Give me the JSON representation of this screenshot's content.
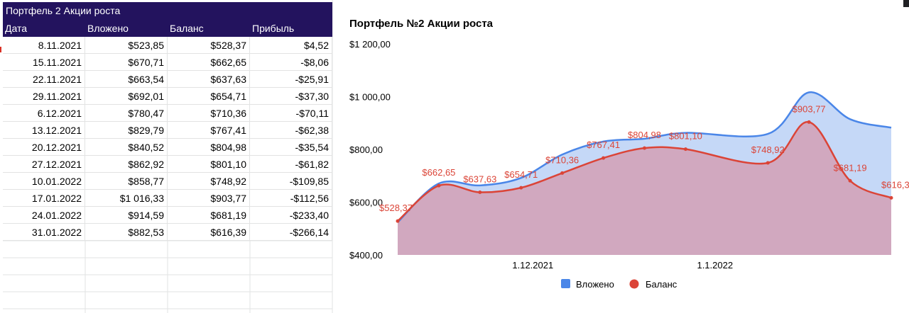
{
  "table": {
    "title": "Портфель 2 Акции роста",
    "headers": [
      "Дата",
      "Вложено",
      "Баланс",
      "Прибыль"
    ],
    "rows": [
      [
        "8.11.2021",
        "$523,85",
        "$528,37",
        "$4,52"
      ],
      [
        "15.11.2021",
        "$670,71",
        "$662,65",
        "-$8,06"
      ],
      [
        "22.11.2021",
        "$663,54",
        "$637,63",
        "-$25,91"
      ],
      [
        "29.11.2021",
        "$692,01",
        "$654,71",
        "-$37,30"
      ],
      [
        "6.12.2021",
        "$780,47",
        "$710,36",
        "-$70,11"
      ],
      [
        "13.12.2021",
        "$829,79",
        "$767,41",
        "-$62,38"
      ],
      [
        "20.12.2021",
        "$840,52",
        "$804,98",
        "-$35,54"
      ],
      [
        "27.12.2021",
        "$862,92",
        "$801,10",
        "-$61,82"
      ],
      [
        "10.01.2022",
        "$858,77",
        "$748,92",
        "-$109,85"
      ],
      [
        "17.01.2022",
        "$1 016,33",
        "$903,77",
        "-$112,56"
      ],
      [
        "24.01.2022",
        "$914,59",
        "$681,19",
        "-$233,40"
      ],
      [
        "31.01.2022",
        "$882,53",
        "$616,39",
        "-$266,14"
      ]
    ]
  },
  "chart_data": {
    "type": "area",
    "title": "Портфель №2 Акции роста",
    "x": [
      "8.11.2021",
      "15.11.2021",
      "22.11.2021",
      "29.11.2021",
      "6.12.2021",
      "13.12.2021",
      "20.12.2021",
      "27.12.2021",
      "10.01.2022",
      "17.01.2022",
      "24.01.2022",
      "31.01.2022"
    ],
    "series": [
      {
        "name": "Вложено",
        "color": "#4a86e8",
        "values": [
          523.85,
          670.71,
          663.54,
          692.01,
          780.47,
          829.79,
          840.52,
          862.92,
          858.77,
          1016.33,
          914.59,
          882.53
        ]
      },
      {
        "name": "Баланс",
        "color": "#db4437",
        "values": [
          528.37,
          662.65,
          637.63,
          654.71,
          710.36,
          767.41,
          804.98,
          801.1,
          748.92,
          903.77,
          681.19,
          616.39
        ]
      }
    ],
    "data_labels": [
      "$528,37",
      "$662,65",
      "$637,63",
      "$654,71",
      "$710,36",
      "$767,41",
      "$804,98",
      "$801,10",
      "$748,92",
      "$903,77",
      "$681,19",
      "$616,39"
    ],
    "ylim": [
      400,
      1200
    ],
    "yticks": [
      {
        "value": 400,
        "label": "$400,00"
      },
      {
        "value": 600,
        "label": "$600,00"
      },
      {
        "value": 800,
        "label": "$800,00"
      },
      {
        "value": 1000,
        "label": "$1 000,00"
      },
      {
        "value": 1200,
        "label": "$1 200,00"
      }
    ],
    "xticks": [
      {
        "date": "1.12.2021",
        "label": "1.12.2021"
      },
      {
        "date": "1.01.2022",
        "label": "1.1.2022"
      }
    ],
    "legend": "bottom",
    "grid": false
  }
}
